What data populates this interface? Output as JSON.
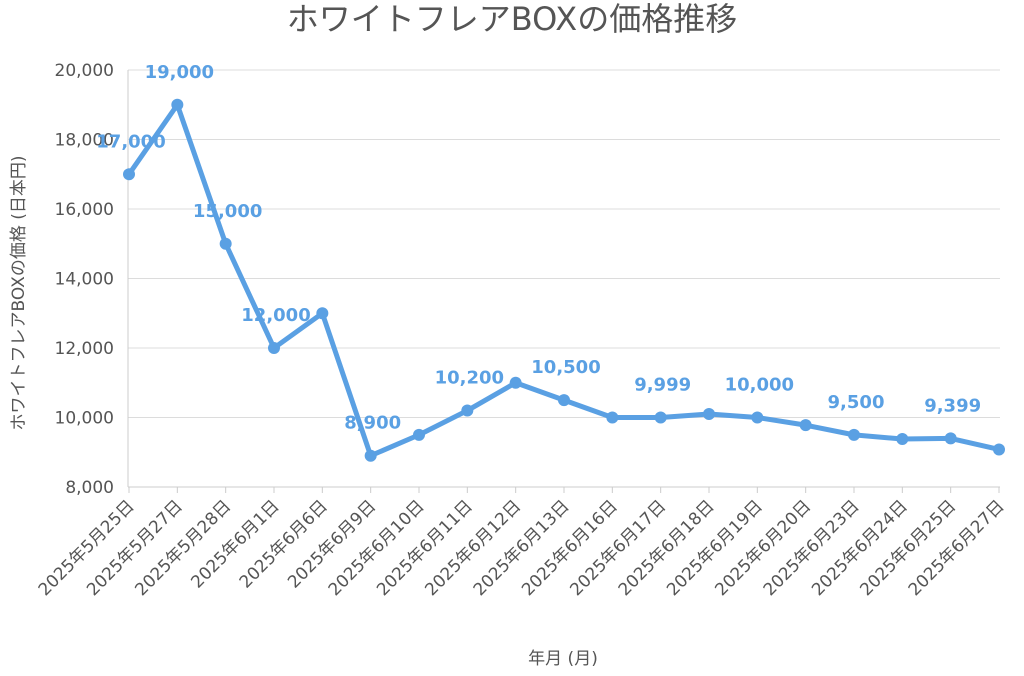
{
  "chart_data": {
    "type": "line",
    "title": "ホワイトフレアBOXの価格推移",
    "xlabel": "年月 (月)",
    "ylabel": "ホワイトフレアBOXの価格 (日本円)",
    "ylim": [
      8000,
      20000
    ],
    "y_ticks": [
      "8,000",
      "10,000",
      "12,000",
      "14,000",
      "16,000",
      "18,000",
      "20,000"
    ],
    "y_tick_values": [
      8000,
      10000,
      12000,
      14000,
      16000,
      18000,
      20000
    ],
    "grid": true,
    "legend": "none",
    "color": "#5aa0e3",
    "categories": [
      "2025年5月25日",
      "2025年5月27日",
      "2025年5月28日",
      "2025年6月1日",
      "2025年6月6日",
      "2025年6月9日",
      "2025年6月10日",
      "2025年6月11日",
      "2025年6月12日",
      "2025年6月13日",
      "2025年6月16日",
      "2025年6月17日",
      "2025年6月18日",
      "2025年6月19日",
      "2025年6月20日",
      "2025年6月23日",
      "2025年6月24日",
      "2025年6月25日",
      "2025年6月27日"
    ],
    "values": [
      17000,
      19000,
      15000,
      12000,
      13000,
      8900,
      9500,
      10200,
      11000,
      10500,
      10000,
      9999,
      10100,
      10000,
      9780,
      9500,
      9380,
      9399,
      9080
    ],
    "data_labels": [
      {
        "index": 0,
        "text": "17,000"
      },
      {
        "index": 1,
        "text": "19,000"
      },
      {
        "index": 2,
        "text": "15,000"
      },
      {
        "index": 3,
        "text": "12,000"
      },
      {
        "index": 5,
        "text": "8,900"
      },
      {
        "index": 7,
        "text": "10,200"
      },
      {
        "index": 9,
        "text": "10,500"
      },
      {
        "index": 11,
        "text": "9,999"
      },
      {
        "index": 13,
        "text": "10,000"
      },
      {
        "index": 15,
        "text": "9,500"
      },
      {
        "index": 17,
        "text": "9,399"
      }
    ]
  }
}
